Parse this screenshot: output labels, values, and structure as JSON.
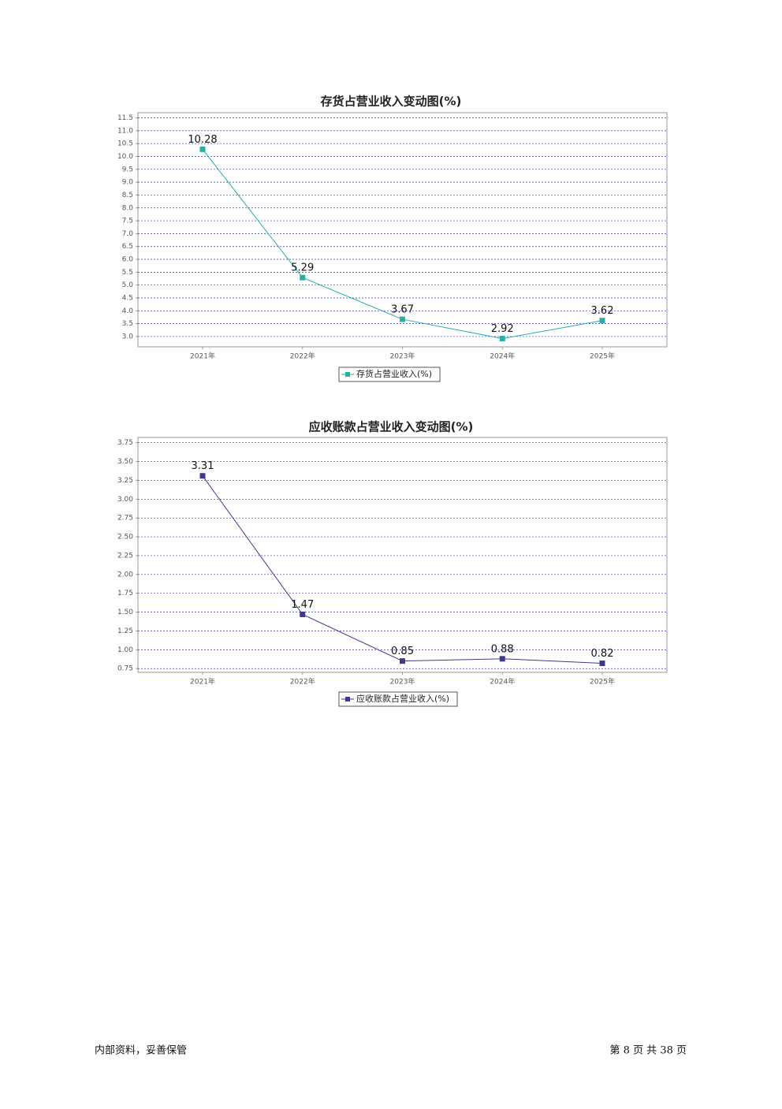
{
  "chart_data": [
    {
      "type": "line",
      "title": "存货占营业收入变动图(%)",
      "categories": [
        "2021年",
        "2022年",
        "2023年",
        "2024年",
        "2025年"
      ],
      "series": [
        {
          "name": "存货占营业收入(%)",
          "color": "#2aaea6",
          "values": [
            10.28,
            5.29,
            3.67,
            2.92,
            3.62
          ]
        }
      ],
      "ylim": [
        2.6,
        11.7
      ],
      "yticks": [
        {
          "value": 3,
          "label": "3.0"
        },
        3.5,
        {
          "value": 4,
          "label": "4.0"
        },
        4.5,
        {
          "value": 5,
          "label": "5.0"
        },
        5.5,
        {
          "value": 6,
          "label": "6.0"
        },
        6.5,
        {
          "value": 7,
          "label": "7.0"
        },
        7.5,
        {
          "value": 8,
          "label": "8.0"
        },
        8.5,
        {
          "value": 9,
          "label": "9.0"
        },
        9.5,
        {
          "value": 10,
          "label": "10.0"
        },
        10.5,
        {
          "value": 11,
          "label": "11.0"
        },
        11.5
      ],
      "grid": true
    },
    {
      "type": "line",
      "title": "应收账款占营业收入变动图(%)",
      "categories": [
        "2021年",
        "2022年",
        "2023年",
        "2024年",
        "2025年"
      ],
      "series": [
        {
          "name": "应收账款占营业收入(%)",
          "color": "#3d3a8c",
          "values": [
            3.31,
            1.47,
            0.85,
            0.88,
            0.82
          ]
        }
      ],
      "ylim": [
        0.7,
        3.82
      ],
      "yticks": [
        0.75,
        {
          "value": 1,
          "label": "1.00"
        },
        1.25,
        {
          "value": 1.5,
          "label": "1.50"
        },
        1.75,
        {
          "value": 2,
          "label": "2.00"
        },
        2.25,
        {
          "value": 2.5,
          "label": "2.50"
        },
        2.75,
        {
          "value": 3,
          "label": "3.00"
        },
        3.25,
        {
          "value": 3.5,
          "label": "3.50"
        },
        3.75
      ],
      "grid": true
    }
  ],
  "footer": {
    "left": "内部资料，妥善保管",
    "right": "第 8 页   共 38 页"
  }
}
